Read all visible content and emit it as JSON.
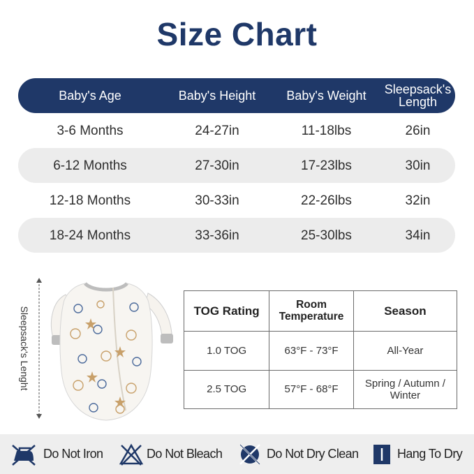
{
  "title": "Size Chart",
  "size_chart": {
    "headers": [
      "Baby's Age",
      "Baby's Height",
      "Baby's Weight",
      "Sleepsack's",
      "Length"
    ],
    "rows": [
      {
        "age": "3-6 Months",
        "height": "24-27in",
        "weight": "11-18lbs",
        "length": "26in"
      },
      {
        "age": "6-12 Months",
        "height": "27-30in",
        "weight": "17-23lbs",
        "length": "30in"
      },
      {
        "age": "12-18 Months",
        "height": "30-33in",
        "weight": "22-26lbs",
        "length": "32in"
      },
      {
        "age": "18-24 Months",
        "height": "33-36in",
        "weight": "25-30lbs",
        "length": "34in"
      }
    ]
  },
  "sleepsack_label": "Sleepsack's Lenght",
  "tog_table": {
    "headers": [
      "TOG Rating",
      "Room",
      "Temperature",
      "Season"
    ],
    "rows": [
      {
        "rating": "1.0 TOG",
        "temp": "63°F  - 73°F",
        "season": "All-Year"
      },
      {
        "rating": "2.5 TOG",
        "temp": "57°F  - 68°F",
        "season": "Spring / Autumn /",
        "season2": "Winter"
      }
    ]
  },
  "care": [
    {
      "icon": "no-iron-icon",
      "label": "Do Not Iron"
    },
    {
      "icon": "no-bleach-icon",
      "label": "Do Not Bleach"
    },
    {
      "icon": "no-dry-clean-icon",
      "label": "Do Not Dry Clean"
    },
    {
      "icon": "hang-dry-icon",
      "label": "Hang To Dry"
    }
  ],
  "colors": {
    "navy": "#1f3868",
    "row_shade": "#ececec",
    "care_bar": "#eeeeee"
  }
}
